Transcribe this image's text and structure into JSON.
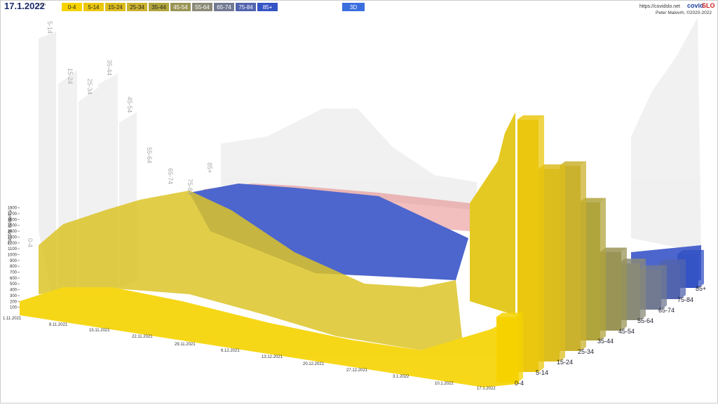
{
  "header": {
    "date": "17.1.2022",
    "weekday": "pon",
    "url": "https://covidslo.net",
    "brand_a": "covid",
    "brand_b": "SLO",
    "author": "Peter Malovrh, ©2020-2022",
    "view_button": "3D"
  },
  "chart_data": {
    "type": "bar3d",
    "y_label": "7d/100k incidenca",
    "categories": [
      "0-4",
      "5-14",
      "15-24",
      "25-34",
      "35-44",
      "45-54",
      "55-64",
      "65-74",
      "75-84",
      "85+"
    ],
    "values": [
      850,
      3400,
      2700,
      2700,
      2100,
      1250,
      950,
      700,
      650,
      650
    ],
    "colors": [
      "#f6d300",
      "#ebc70f",
      "#dcbd1e",
      "#cbb22e",
      "#b0a43c",
      "#9a9456",
      "#8a8a78",
      "#727a92",
      "#5264ae",
      "#3453c4"
    ],
    "x": [
      "1.11.2021",
      "8.11.2021",
      "15.11.2021",
      "22.11.2021",
      "29.11.2021",
      "6.12.2021",
      "13.12.2021",
      "20.12.2021",
      "27.12.2021",
      "3.1.2022",
      "10.1.2022",
      "17.1.2022"
    ],
    "ylim": [
      0,
      1800
    ],
    "yticks": [
      100,
      200,
      300,
      400,
      500,
      600,
      700,
      800,
      900,
      1000,
      1100,
      1200,
      1300,
      1400,
      1500,
      1600,
      1700,
      1800
    ]
  }
}
